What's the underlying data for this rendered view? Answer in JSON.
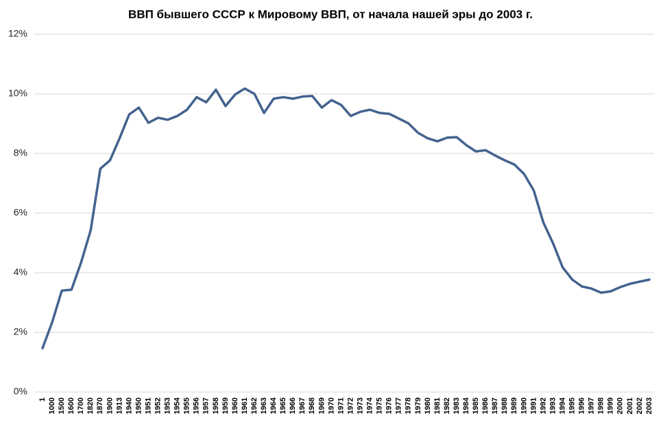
{
  "chart_data": {
    "type": "line",
    "title": "ВВП бывшего СССР к Мировому ВВП, от начала нашей эры до 2003 г.",
    "categories": [
      "1",
      "1000",
      "1500",
      "1600",
      "1700",
      "1820",
      "1870",
      "1900",
      "1913",
      "1940",
      "1950",
      "1951",
      "1952",
      "1953",
      "1954",
      "1955",
      "1956",
      "1957",
      "1958",
      "1959",
      "1960",
      "1961",
      "1962",
      "1963",
      "1964",
      "1965",
      "1966",
      "1967",
      "1968",
      "1969",
      "1970",
      "1971",
      "1972",
      "1973",
      "1974",
      "1975",
      "1976",
      "1977",
      "1978",
      "1979",
      "1980",
      "1981",
      "1982",
      "1983",
      "1984",
      "1985",
      "1986",
      "1987",
      "1988",
      "1989",
      "1990",
      "1991",
      "1992",
      "1993",
      "1994",
      "1995",
      "1996",
      "1997",
      "1998",
      "1999",
      "2000",
      "2001",
      "2002",
      "2003"
    ],
    "series": [
      {
        "color": "#43628e",
        "values": [
          1.47,
          2.34,
          3.4,
          3.43,
          4.34,
          5.43,
          7.49,
          7.77,
          8.51,
          9.31,
          9.54,
          9.03,
          9.2,
          9.13,
          9.26,
          9.47,
          9.89,
          9.72,
          10.14,
          9.59,
          9.98,
          10.18,
          10.0,
          9.36,
          9.84,
          9.89,
          9.84,
          9.91,
          9.93,
          9.54,
          9.79,
          9.63,
          9.26,
          9.4,
          9.47,
          9.36,
          9.33,
          9.17,
          9.01,
          8.69,
          8.51,
          8.41,
          8.53,
          8.55,
          8.28,
          8.07,
          8.11,
          7.93,
          7.77,
          7.63,
          7.31,
          6.76,
          5.68,
          4.99,
          4.18,
          3.77,
          3.54,
          3.47,
          3.33,
          3.38,
          3.52,
          3.63,
          3.7,
          3.77
        ]
      }
    ],
    "ylim": [
      0,
      12
    ],
    "yticks": [
      {
        "value": 0,
        "label": "0%"
      },
      {
        "value": 2,
        "label": "2%"
      },
      {
        "value": 4,
        "label": "4%"
      },
      {
        "value": 6,
        "label": "6%"
      },
      {
        "value": 8,
        "label": "8%"
      },
      {
        "value": 10,
        "label": "10%"
      },
      {
        "value": 12,
        "label": "12%"
      }
    ],
    "grid": true
  }
}
